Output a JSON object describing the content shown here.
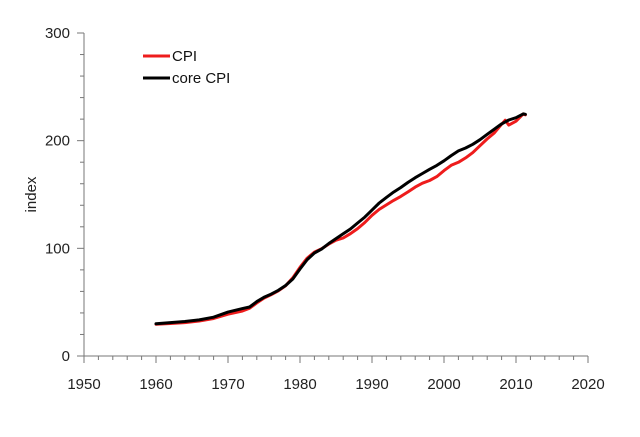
{
  "chart_data": {
    "type": "line",
    "title": "",
    "xlabel": "",
    "ylabel": "index",
    "xlim": [
      1950,
      2020
    ],
    "ylim": [
      0,
      300
    ],
    "xticks": [
      1950,
      1960,
      1970,
      1980,
      1990,
      2000,
      2010,
      2020
    ],
    "yticks": [
      0,
      100,
      200,
      300
    ],
    "grid": false,
    "legend_position": "top-left",
    "series": [
      {
        "name": "CPI",
        "color": "#ee1c1c",
        "x": [
          1960,
          1962,
          1964,
          1966,
          1968,
          1970,
          1972,
          1973,
          1974,
          1975,
          1976,
          1977,
          1978,
          1979,
          1980,
          1981,
          1982,
          1983,
          1984,
          1985,
          1986,
          1987,
          1988,
          1989,
          1990,
          1991,
          1992,
          1993,
          1994,
          1995,
          1996,
          1997,
          1998,
          1999,
          2000,
          2001,
          2002,
          2003,
          2004,
          2005,
          2006,
          2007,
          2008,
          2008.5,
          2009,
          2010,
          2011,
          2011.3
        ],
        "y": [
          29.5,
          30.2,
          31.0,
          32.5,
          34.8,
          38.8,
          41.8,
          44.4,
          49.3,
          53.8,
          56.9,
          60.6,
          65.2,
          72.6,
          82.4,
          90.9,
          96.5,
          99.6,
          103.9,
          107.6,
          109.6,
          113.6,
          118.3,
          124.0,
          130.7,
          136.2,
          140.3,
          144.5,
          148.2,
          152.4,
          156.9,
          160.5,
          163.0,
          166.6,
          172.2,
          177.1,
          179.9,
          184.0,
          188.9,
          195.3,
          201.6,
          207.3,
          215.3,
          219.0,
          214.5,
          218.1,
          224.9,
          224.0
        ]
      },
      {
        "name": "core CPI",
        "color": "#000000",
        "x": [
          1960,
          1962,
          1964,
          1966,
          1968,
          1970,
          1972,
          1973,
          1974,
          1975,
          1976,
          1977,
          1978,
          1979,
          1980,
          1981,
          1982,
          1983,
          1984,
          1985,
          1986,
          1987,
          1988,
          1989,
          1990,
          1991,
          1992,
          1993,
          1994,
          1995,
          1996,
          1997,
          1998,
          1999,
          2000,
          2001,
          2002,
          2003,
          2004,
          2005,
          2006,
          2007,
          2008,
          2009,
          2010,
          2011,
          2011.3
        ],
        "y": [
          30.0,
          31.0,
          32.0,
          33.5,
          36.0,
          40.8,
          44.0,
          45.5,
          50.5,
          54.5,
          57.5,
          61.0,
          65.5,
          71.5,
          80.8,
          89.5,
          95.7,
          99.3,
          104.5,
          109.0,
          113.5,
          118.0,
          123.5,
          129.0,
          135.5,
          142.1,
          147.3,
          152.2,
          156.5,
          161.2,
          165.6,
          169.5,
          173.4,
          177.0,
          181.3,
          186.1,
          190.5,
          193.2,
          196.6,
          200.9,
          205.9,
          210.7,
          215.6,
          219.2,
          221.3,
          224.9,
          224.5
        ]
      }
    ]
  }
}
